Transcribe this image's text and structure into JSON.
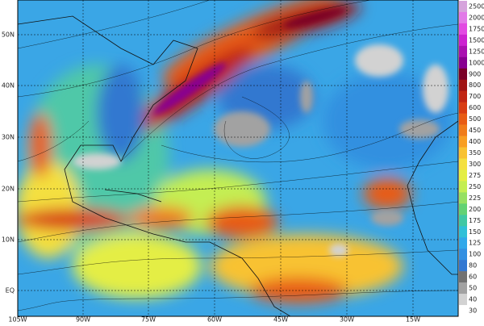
{
  "map": {
    "latitude_labels": [
      "50N",
      "40N",
      "30N",
      "20N",
      "10N",
      "EQ"
    ],
    "longitude_labels": [
      "105W",
      "90W",
      "75W",
      "60W",
      "45W",
      "30W",
      "15W"
    ],
    "colorbar": {
      "levels": [
        2500,
        2000,
        1750,
        1500,
        1250,
        1000,
        900,
        800,
        700,
        600,
        500,
        450,
        400,
        350,
        300,
        275,
        250,
        225,
        200,
        175,
        150,
        125,
        100,
        80,
        60,
        50,
        40,
        30
      ],
      "colors": [
        "#d6a4dc",
        "#e27ae8",
        "#e24ae2",
        "#cc22d0",
        "#aa10b0",
        "#880090",
        "#7a0028",
        "#a01414",
        "#c02412",
        "#d83c12",
        "#e85c14",
        "#f07c1a",
        "#f89e22",
        "#f8c232",
        "#f4e040",
        "#e4ee44",
        "#c4ee52",
        "#96e062",
        "#62d274",
        "#40c8a4",
        "#30c0d8",
        "#30a8ea",
        "#3290e2",
        "#3278d2",
        "#727272",
        "#a2a2a2",
        "#d2d2d2",
        "#ffffff"
      ]
    }
  }
}
